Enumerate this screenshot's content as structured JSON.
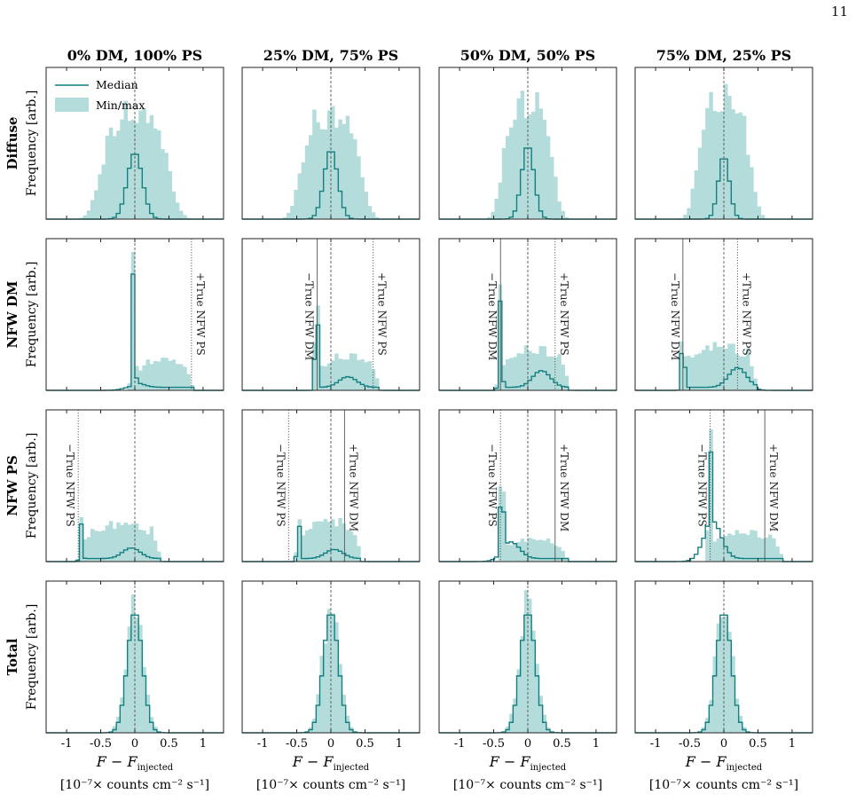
{
  "page": {
    "number": "11"
  },
  "chart_data": {
    "type": "histogram-grid",
    "column_titles": [
      "0% DM, 100% PS",
      "25% DM, 75% PS",
      "50% DM, 50% PS",
      "75% DM, 25% PS"
    ],
    "row_labels": [
      "Diffuse",
      "NFW DM",
      "NFW PS",
      "Total"
    ],
    "ylabel": "Frequency [arb.]",
    "xlabel_main": "F − F",
    "xlabel_sub": "injected",
    "xlabel_units": "[10⁻⁷× counts cm⁻² s⁻¹]",
    "xlim": [
      -1.3,
      1.3
    ],
    "xticks": [
      -1,
      -0.5,
      0,
      0.5,
      1
    ],
    "xtick_labels": [
      "-1",
      "-0.5",
      "0",
      "0.5",
      "1"
    ],
    "legend": {
      "position": "top-left",
      "entries": [
        "Median",
        "Min/max"
      ]
    },
    "colors": {
      "median": "#147f80",
      "minmax": "#b4dcdb",
      "axis": "#222222",
      "ref": "#555555"
    },
    "panels": [
      {
        "row": 0,
        "col": 0,
        "shape": "wide",
        "center": 0.0,
        "width": 0.54,
        "amplitude": 0.72,
        "median_center": 0.0,
        "median_width": 0.11,
        "median_amplitude": 0.44,
        "markers": []
      },
      {
        "row": 0,
        "col": 1,
        "shape": "wide",
        "center": 0.0,
        "width": 0.48,
        "amplitude": 0.71,
        "median_center": 0.0,
        "median_width": 0.1,
        "median_amplitude": 0.46,
        "markers": []
      },
      {
        "row": 0,
        "col": 2,
        "shape": "wide",
        "center": 0.0,
        "width": 0.4,
        "amplitude": 0.8,
        "median_center": 0.0,
        "median_width": 0.09,
        "median_amplitude": 0.49,
        "markers": []
      },
      {
        "row": 0,
        "col": 3,
        "shape": "wide",
        "center": 0.0,
        "width": 0.42,
        "amplitude": 0.83,
        "median_center": 0.0,
        "median_width": 0.08,
        "median_amplitude": 0.42,
        "markers": []
      },
      {
        "row": 1,
        "col": 0,
        "shape": "spike-tail",
        "spike": -0.02,
        "spike_amplitude": 0.95,
        "tail_start": -0.02,
        "tail_end": 0.85,
        "tail_amplitude": 0.18,
        "median_bump_center": 0.0,
        "median_bump_amplitude": 0.03,
        "markers": [
          {
            "x": 0.83,
            "style": "dotted",
            "label": "+True NFW PS"
          }
        ]
      },
      {
        "row": 1,
        "col": 1,
        "shape": "spike-tail",
        "spike": -0.21,
        "spike_amplitude": 0.78,
        "tail_start": -0.21,
        "tail_end": 0.72,
        "tail_amplitude": 0.2,
        "median_bump_center": 0.25,
        "median_bump_amplitude": 0.07,
        "markers": [
          {
            "x": -0.2,
            "style": "solid",
            "label": "−True NFW DM"
          },
          {
            "x": 0.62,
            "style": "dotted",
            "label": "+True NFW PS"
          }
        ]
      },
      {
        "row": 1,
        "col": 2,
        "shape": "spike-tail",
        "spike": -0.4,
        "spike_amplitude": 0.72,
        "tail_start": -0.4,
        "tail_end": 0.62,
        "tail_amplitude": 0.24,
        "median_bump_center": 0.2,
        "median_bump_amplitude": 0.11,
        "markers": [
          {
            "x": -0.4,
            "style": "solid",
            "label": "−True NFW DM"
          },
          {
            "x": 0.4,
            "style": "dotted",
            "label": "+True NFW PS"
          }
        ]
      },
      {
        "row": 1,
        "col": 3,
        "shape": "spike-tail",
        "spike": -0.6,
        "spike_amplitude": 0.49,
        "tail_start": -0.6,
        "tail_end": 0.5,
        "tail_amplitude": 0.26,
        "median_bump_center": 0.2,
        "median_bump_amplitude": 0.13,
        "markers": [
          {
            "x": -0.6,
            "style": "solid",
            "label": "−True NFW DM"
          },
          {
            "x": 0.2,
            "style": "dotted",
            "label": "+True NFW PS"
          }
        ]
      },
      {
        "row": 2,
        "col": 0,
        "shape": "spike-tail",
        "spike": -0.78,
        "spike_amplitude": 0.3,
        "tail_start": -0.78,
        "tail_end": 0.4,
        "tail_amplitude": 0.22,
        "median_bump_center": -0.05,
        "median_bump_amplitude": 0.07,
        "markers": [
          {
            "x": -0.83,
            "style": "dotted",
            "label": "−True NFW PS"
          }
        ]
      },
      {
        "row": 2,
        "col": 1,
        "shape": "spike-tail",
        "spike": -0.47,
        "spike_amplitude": 0.3,
        "tail_start": -0.5,
        "tail_end": 0.45,
        "tail_amplitude": 0.24,
        "median_bump_center": 0.05,
        "median_bump_amplitude": 0.06,
        "markers": [
          {
            "x": -0.62,
            "style": "dotted",
            "label": "−True NFW PS"
          },
          {
            "x": 0.2,
            "style": "solid",
            "label": "+True NFW DM"
          }
        ]
      },
      {
        "row": 2,
        "col": 2,
        "shape": "spike-tail",
        "spike": -0.38,
        "spike_amplitude": 0.86,
        "tail_start": -0.4,
        "tail_end": 0.58,
        "tail_amplitude": 0.13,
        "median_bump_center": -0.25,
        "median_bump_amplitude": 0.11,
        "markers": [
          {
            "x": -0.4,
            "style": "dotted",
            "label": "−True NFW PS"
          },
          {
            "x": 0.4,
            "style": "solid",
            "label": "+True NFW DM"
          }
        ]
      },
      {
        "row": 2,
        "col": 3,
        "shape": "spike-tail",
        "spike": -0.2,
        "spike_amplitude": 0.95,
        "tail_start": -0.25,
        "tail_end": 0.88,
        "tail_amplitude": 0.17,
        "median_bump_center": -0.17,
        "median_bump_amplitude": 0.25,
        "markers": [
          {
            "x": -0.2,
            "style": "dotted",
            "label": "−True NFW PS"
          },
          {
            "x": 0.6,
            "style": "solid",
            "label": "+True NFW DM"
          }
        ]
      },
      {
        "row": 3,
        "col": 0,
        "shape": "narrow",
        "center": 0.0,
        "width": 0.12,
        "amplitude": 0.9,
        "median_center": 0.0,
        "median_width": 0.11,
        "median_amplitude": 0.8,
        "markers": []
      },
      {
        "row": 3,
        "col": 1,
        "shape": "narrow",
        "center": 0.0,
        "width": 0.12,
        "amplitude": 0.9,
        "median_center": 0.0,
        "median_width": 0.11,
        "median_amplitude": 0.8,
        "markers": []
      },
      {
        "row": 3,
        "col": 2,
        "shape": "narrow",
        "center": 0.0,
        "width": 0.12,
        "amplitude": 0.92,
        "median_center": 0.0,
        "median_width": 0.11,
        "median_amplitude": 0.8,
        "markers": []
      },
      {
        "row": 3,
        "col": 3,
        "shape": "narrow",
        "center": 0.0,
        "width": 0.12,
        "amplitude": 0.9,
        "median_center": 0.0,
        "median_width": 0.11,
        "median_amplitude": 0.8,
        "markers": []
      }
    ]
  }
}
